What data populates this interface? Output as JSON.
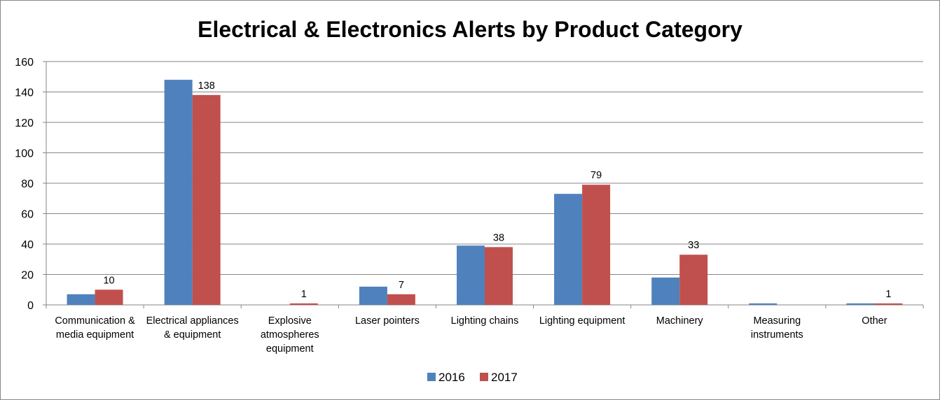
{
  "chart_data": {
    "type": "bar",
    "title": "Electrical & Electronics Alerts by Product Category",
    "xlabel": "",
    "ylabel": "",
    "ylim": [
      0,
      160
    ],
    "yticks": [
      0,
      20,
      40,
      60,
      80,
      100,
      120,
      140,
      160
    ],
    "grid": true,
    "legend_position": "bottom",
    "categories": [
      [
        "Communication &",
        "media equipment"
      ],
      [
        "Electrical appliances",
        "& equipment"
      ],
      [
        "Explosive",
        "atmospheres",
        "equipment"
      ],
      [
        "Laser pointers"
      ],
      [
        "Lighting chains"
      ],
      [
        "Lighting equipment"
      ],
      [
        "Machinery"
      ],
      [
        "Measuring",
        "instruments"
      ],
      [
        "Other"
      ]
    ],
    "series": [
      {
        "name": "2016",
        "color": "#4F81BD",
        "values": [
          7,
          148,
          0,
          12,
          39,
          73,
          18,
          1,
          1
        ],
        "labels": []
      },
      {
        "name": "2017",
        "color": "#C0504D",
        "values": [
          10,
          138,
          1,
          7,
          38,
          79,
          33,
          0,
          1
        ],
        "labels": [
          "10",
          "138",
          "1",
          "7",
          "38",
          "79",
          "33",
          "",
          "1"
        ]
      }
    ]
  }
}
